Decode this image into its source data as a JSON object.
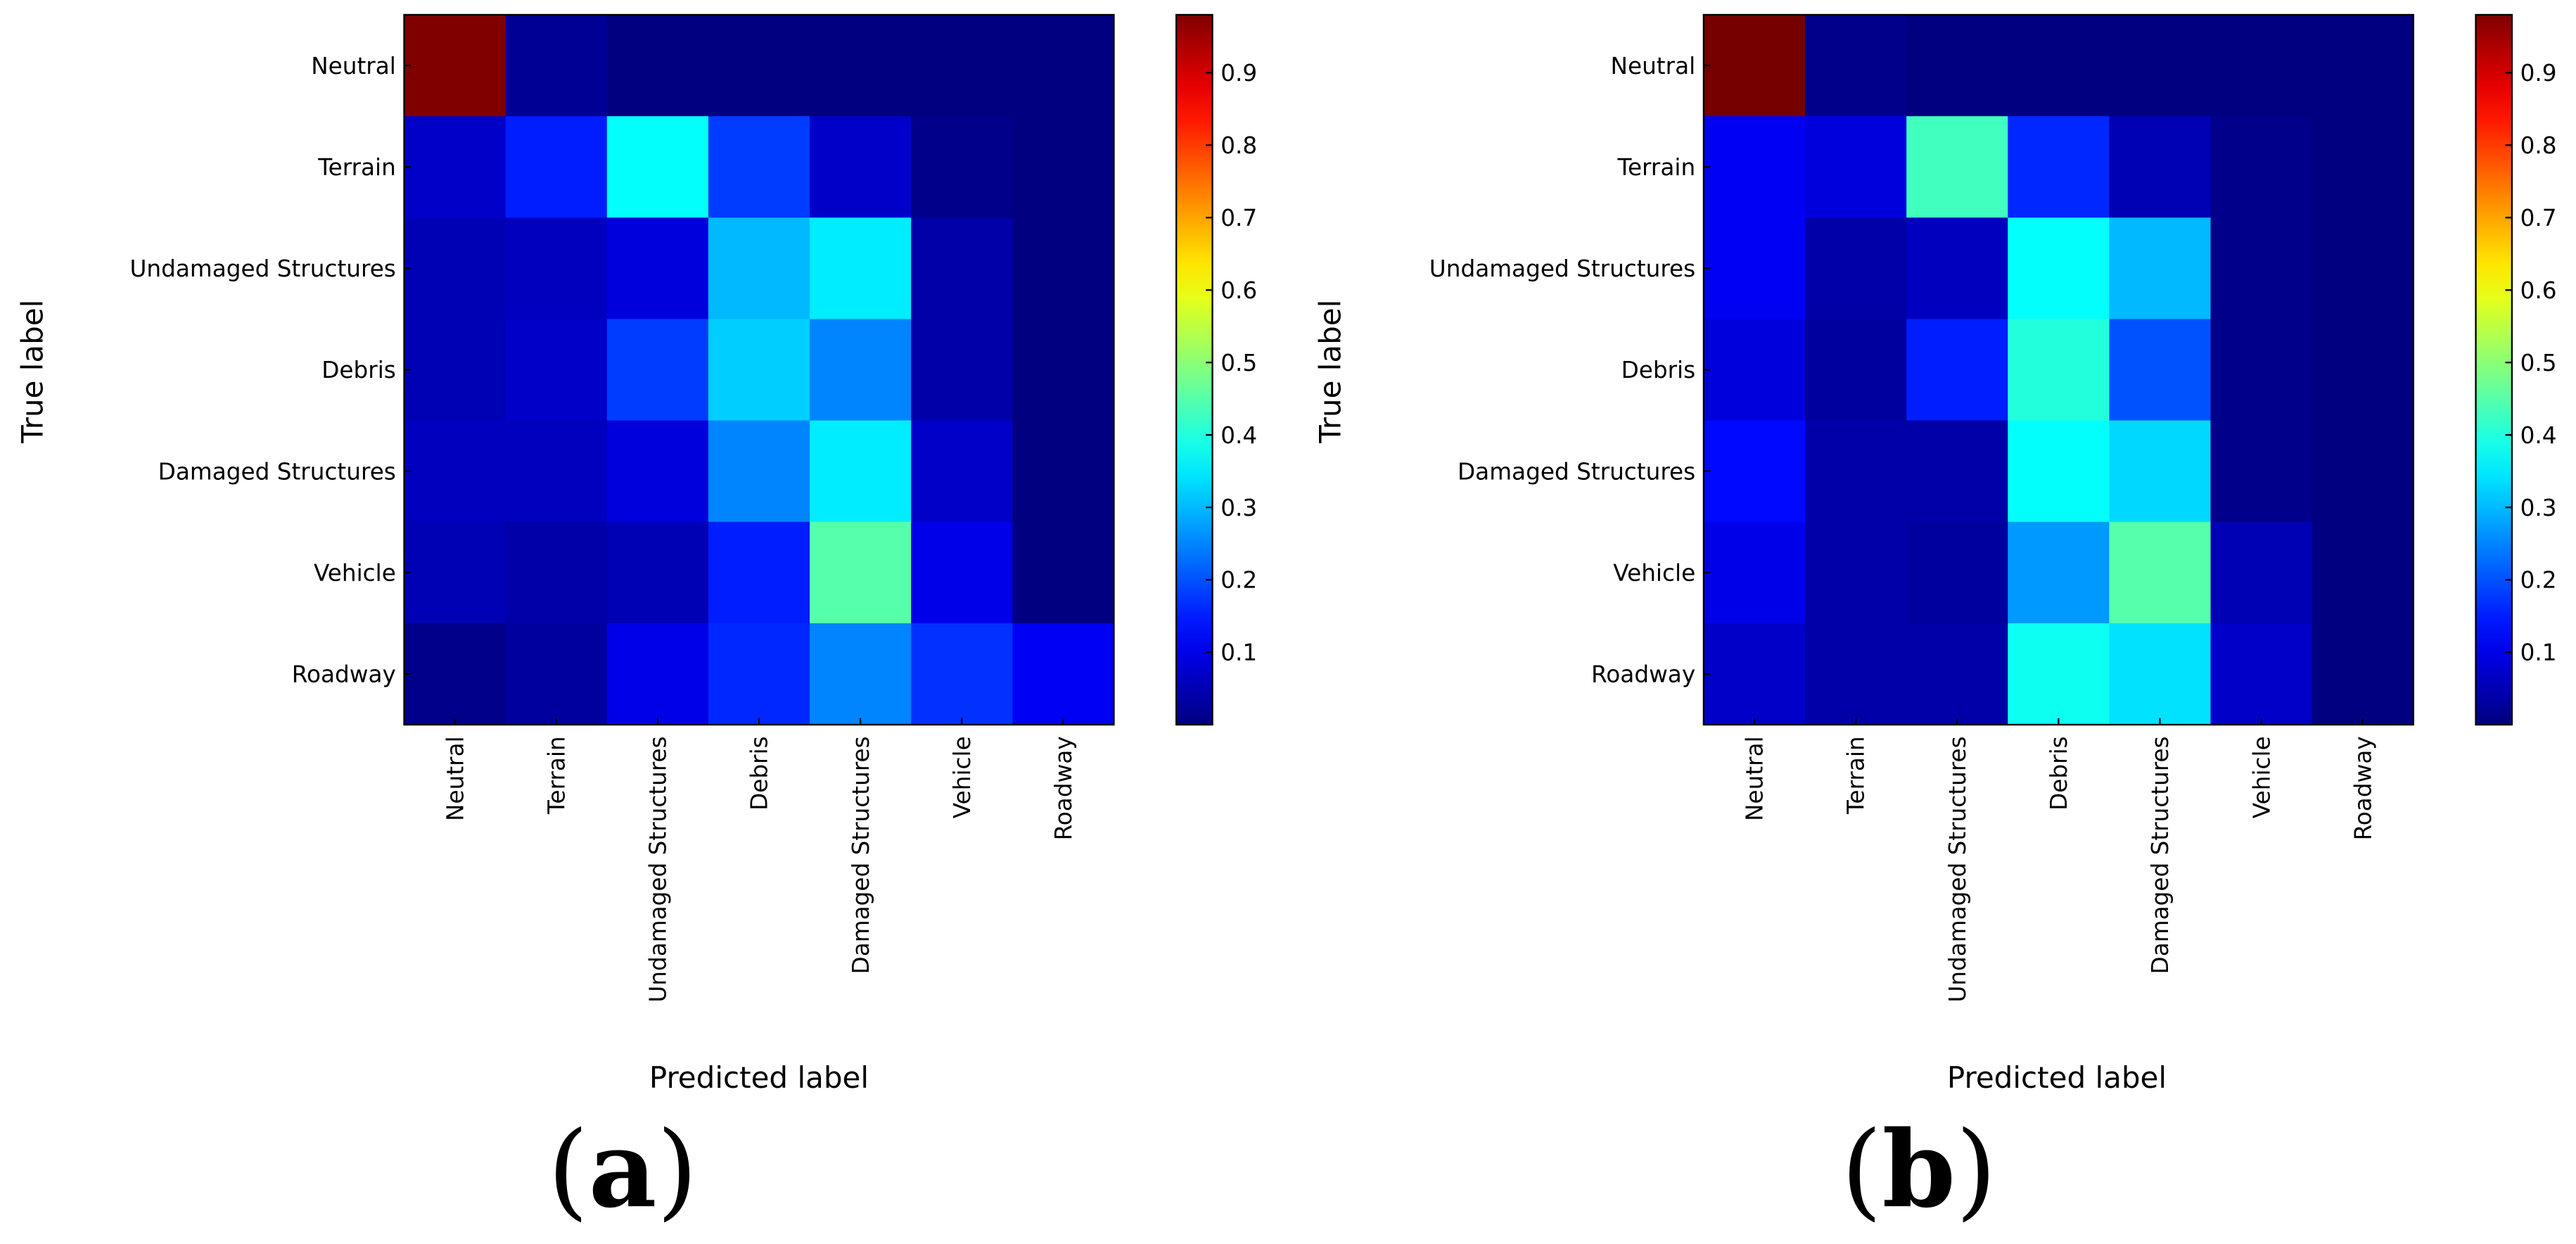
{
  "chart_data": [
    {
      "type": "heatmap",
      "panel_label": "a",
      "xlabel": "Predicted label",
      "ylabel": "True label",
      "row_labels": [
        "Neutral",
        "Terrain",
        "Undamaged Structures",
        "Debris",
        "Damaged Structures",
        "Vehicle",
        "Roadway"
      ],
      "col_labels": [
        "Neutral",
        "Terrain",
        "Undamaged Structures",
        "Debris",
        "Damaged Structures",
        "Vehicle",
        "Roadway"
      ],
      "values": [
        [
          0.98,
          0.02,
          0.0,
          0.0,
          0.0,
          0.0,
          0.0
        ],
        [
          0.07,
          0.15,
          0.37,
          0.18,
          0.07,
          0.01,
          0.0
        ],
        [
          0.05,
          0.06,
          0.09,
          0.3,
          0.35,
          0.04,
          0.0
        ],
        [
          0.05,
          0.07,
          0.18,
          0.32,
          0.25,
          0.04,
          0.0
        ],
        [
          0.06,
          0.06,
          0.09,
          0.25,
          0.35,
          0.07,
          0.0
        ],
        [
          0.05,
          0.04,
          0.05,
          0.15,
          0.45,
          0.1,
          0.0
        ],
        [
          0.01,
          0.03,
          0.1,
          0.16,
          0.25,
          0.17,
          0.11
        ]
      ],
      "colorbar": {
        "range": [
          0,
          0.98
        ],
        "ticks": [
          0.1,
          0.2,
          0.3,
          0.4,
          0.5,
          0.6,
          0.7,
          0.8,
          0.9
        ],
        "tick_labels": [
          "0.1",
          "0.2",
          "0.3",
          "0.4",
          "0.5",
          "0.6",
          "0.7",
          "0.8",
          "0.9"
        ]
      },
      "colormap": "jet"
    },
    {
      "type": "heatmap",
      "panel_label": "b",
      "xlabel": "Predicted label",
      "ylabel": "True label",
      "row_labels": [
        "Neutral",
        "Terrain",
        "Undamaged Structures",
        "Debris",
        "Damaged Structures",
        "Vehicle",
        "Roadway"
      ],
      "col_labels": [
        "Neutral",
        "Terrain",
        "Undamaged Structures",
        "Debris",
        "Damaged Structures",
        "Vehicle",
        "Roadway"
      ],
      "values": [
        [
          0.99,
          0.01,
          0.0,
          0.0,
          0.0,
          0.0,
          0.0
        ],
        [
          0.11,
          0.09,
          0.43,
          0.16,
          0.05,
          0.01,
          0.0
        ],
        [
          0.11,
          0.04,
          0.06,
          0.37,
          0.3,
          0.01,
          0.0
        ],
        [
          0.09,
          0.03,
          0.15,
          0.4,
          0.2,
          0.01,
          0.0
        ],
        [
          0.13,
          0.04,
          0.04,
          0.37,
          0.33,
          0.01,
          0.0
        ],
        [
          0.1,
          0.04,
          0.03,
          0.27,
          0.45,
          0.05,
          0.0
        ],
        [
          0.07,
          0.04,
          0.04,
          0.38,
          0.34,
          0.07,
          0.0
        ]
      ],
      "colorbar": {
        "range": [
          0,
          0.98
        ],
        "ticks": [
          0.1,
          0.2,
          0.3,
          0.4,
          0.5,
          0.6,
          0.7,
          0.8,
          0.9
        ],
        "tick_labels": [
          "0.1",
          "0.2",
          "0.3",
          "0.4",
          "0.5",
          "0.6",
          "0.7",
          "0.8",
          "0.9"
        ]
      },
      "colormap": "jet"
    }
  ]
}
